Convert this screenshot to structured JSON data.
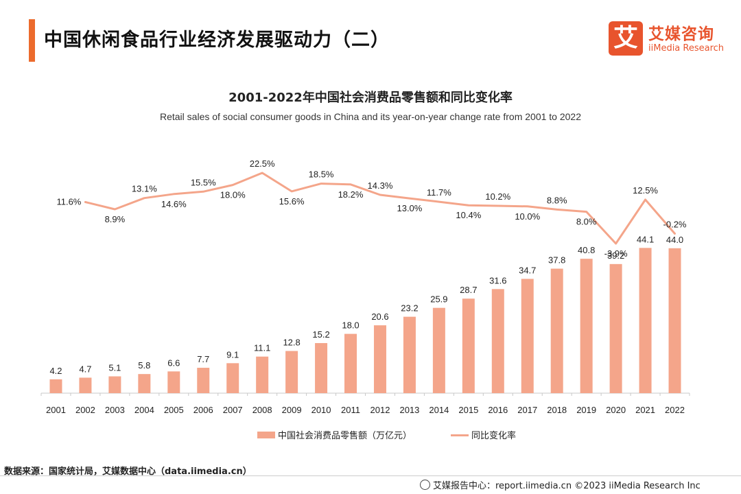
{
  "header": {
    "title": "中国休闲食品行业经济发展驱动力（二）",
    "accent_color": "#ec6b2d"
  },
  "logo": {
    "mark": "艾",
    "cn": "艾媒咨询",
    "en": "iiMedia Research",
    "color": "#e8542d"
  },
  "chart_data": {
    "type": "bar",
    "title": "2001-2022年中国社会消费品零售额和同比变化率",
    "subtitle": "Retail sales of social consumer goods in China and its year-on-year change rate from 2001 to 2022",
    "categories": [
      "2001",
      "2002",
      "2003",
      "2004",
      "2005",
      "2006",
      "2007",
      "2008",
      "2009",
      "2010",
      "2011",
      "2012",
      "2013",
      "2014",
      "2015",
      "2016",
      "2017",
      "2018",
      "2019",
      "2020",
      "2021",
      "2022"
    ],
    "series": [
      {
        "name": "中国社会消费品零售额（万亿元）",
        "type": "bar",
        "color": "#f4a58a",
        "values": [
          4.2,
          4.7,
          5.1,
          5.8,
          6.6,
          7.7,
          9.1,
          11.1,
          12.8,
          15.2,
          18.0,
          20.6,
          23.2,
          25.9,
          28.7,
          31.6,
          34.7,
          37.8,
          40.8,
          39.2,
          44.1,
          44.0
        ],
        "labels": [
          "4.2",
          "4.7",
          "5.1",
          "5.8",
          "6.6",
          "7.7",
          "9.1",
          "11.1",
          "12.8",
          "15.2",
          "18.0",
          "20.6",
          "23.2",
          "25.9",
          "28.7",
          "31.6",
          "34.7",
          "37.8",
          "40.8",
          "39.2",
          "44.1",
          "44.0"
        ]
      },
      {
        "name": "同比变化率",
        "type": "line",
        "color": "#f4a58a",
        "values": [
          11.6,
          8.9,
          13.1,
          14.6,
          15.5,
          18.0,
          22.5,
          15.6,
          18.5,
          18.2,
          14.3,
          13.0,
          11.7,
          10.4,
          10.2,
          10.0,
          8.8,
          8.0,
          -3.9,
          12.5,
          -0.2
        ],
        "x": [
          "2002",
          "2003",
          "2004",
          "2005",
          "2006",
          "2007",
          "2008",
          "2009",
          "2010",
          "2011",
          "2012",
          "2013",
          "2014",
          "2015",
          "2016",
          "2017",
          "2018",
          "2019",
          "2020",
          "2021",
          "2022"
        ],
        "labels": [
          "11.6%",
          "8.9%",
          "13.1%",
          "14.6%",
          "15.5%",
          "18.0%",
          "22.5%",
          "15.6%",
          "18.5%",
          "18.2%",
          "14.3%",
          "13.0%",
          "11.7%",
          "10.4%",
          "10.2%",
          "10.0%",
          "8.8%",
          "8.0%",
          "-3.9%",
          "12.5%",
          "-0.2%"
        ]
      }
    ],
    "legend_position": "bottom",
    "grid": false
  },
  "source": "数据来源：国家统计局，艾媒数据中心（data.iimedia.cn）",
  "footer": "艾媒报告中心：report.iimedia.cn  ©2023  iiMedia Research  Inc"
}
